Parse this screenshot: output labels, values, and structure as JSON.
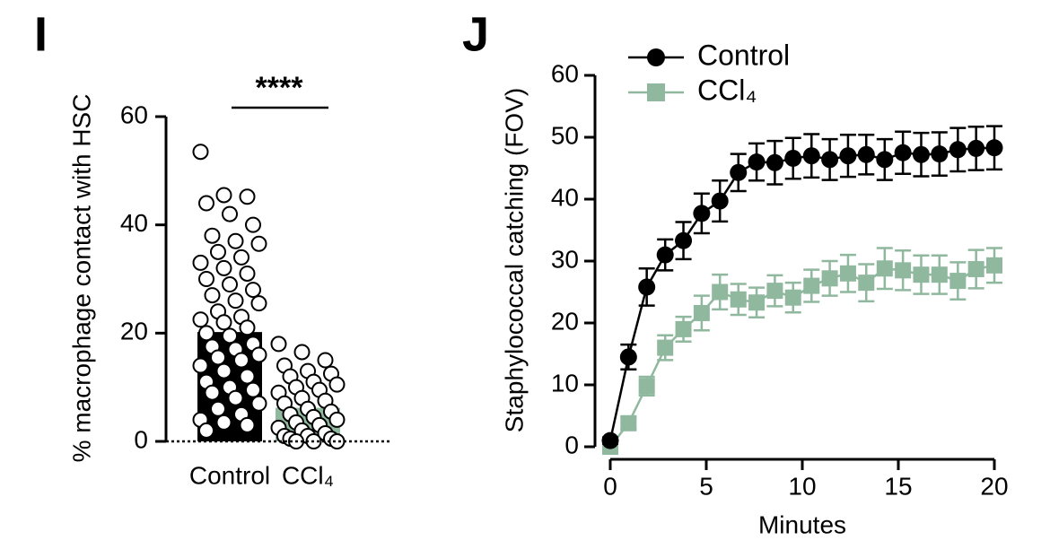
{
  "chart_data": [
    {
      "type": "bar",
      "panel_label": "I",
      "ylabel": "% macrophage contact with HSC",
      "categories": [
        "Control",
        "CCl₄"
      ],
      "values": [
        20.2,
        6.2
      ],
      "colors": [
        "#000000",
        "#8fb89e"
      ],
      "points": [
        [
          53.5,
          45.5,
          45.2,
          44,
          42,
          40,
          38,
          37,
          36.5,
          35,
          34,
          33,
          32,
          31,
          30,
          29,
          28,
          27,
          26,
          25.5,
          24,
          23,
          22.5,
          22,
          21,
          20,
          19.5,
          18,
          17.5,
          17,
          16,
          15.5,
          15,
          14,
          13,
          12,
          11,
          10,
          9.5,
          9,
          8,
          7,
          6,
          5,
          4,
          3.5,
          3,
          2
        ],
        [
          18,
          16.5,
          15,
          14,
          13,
          12.5,
          12,
          11,
          10.5,
          10,
          9.5,
          9,
          8,
          7.5,
          7,
          6,
          5.5,
          5,
          4.5,
          4,
          3.5,
          3,
          2.5,
          2,
          1.5,
          1,
          1,
          0.5,
          0.5,
          0,
          0,
          0
        ]
      ],
      "significance": "****",
      "ylim": [
        0,
        60
      ],
      "yticks": [
        0,
        20,
        40,
        60
      ]
    },
    {
      "type": "line",
      "panel_label": "J",
      "xlabel": "Minutes",
      "ylabel": "Staphylococcal catching (FOV)",
      "x": [
        0,
        0.95,
        1.9,
        2.86,
        3.81,
        4.76,
        5.71,
        6.67,
        7.62,
        8.57,
        9.52,
        10.48,
        11.43,
        12.38,
        13.33,
        14.29,
        15.24,
        16.19,
        17.14,
        18.1,
        19.05,
        20
      ],
      "series": [
        {
          "name": "Control",
          "color": "#000000",
          "marker": "circle",
          "values": [
            1,
            14.5,
            25.8,
            31,
            33.3,
            37.7,
            39.7,
            44.3,
            46,
            45.9,
            46.6,
            47,
            46.4,
            47,
            47.2,
            46.4,
            47.5,
            47.2,
            47.3,
            48,
            48.2,
            48.3
          ],
          "errors": [
            0.5,
            2,
            3,
            2.5,
            3,
            3.2,
            3.3,
            3,
            3,
            3.5,
            3.3,
            3.5,
            3.3,
            3.4,
            3.2,
            3.3,
            3.4,
            3.5,
            3.5,
            3.5,
            3.5,
            3.5
          ]
        },
        {
          "name": "CCl₄",
          "color": "#8fb89e",
          "marker": "square",
          "values": [
            0,
            3.8,
            9.8,
            16,
            19,
            21.6,
            25,
            23.8,
            23.3,
            25.2,
            24.1,
            26,
            27.2,
            28,
            26.5,
            28.8,
            28.5,
            27.8,
            27.8,
            26.8,
            28.7,
            29.3
          ],
          "errors": [
            0.3,
            1,
            1.5,
            2,
            2,
            2.8,
            2.8,
            2.5,
            2.4,
            2.5,
            2.4,
            2.6,
            2.8,
            3,
            3,
            3.3,
            3.2,
            3.1,
            3.1,
            3,
            3.1,
            2.8
          ]
        }
      ],
      "xlim": [
        0,
        20
      ],
      "xticks": [
        0,
        5,
        10,
        15,
        20
      ],
      "ylim": [
        0,
        60
      ],
      "yticks": [
        0,
        10,
        20,
        30,
        40,
        50,
        60
      ],
      "legend": "upper left"
    }
  ]
}
